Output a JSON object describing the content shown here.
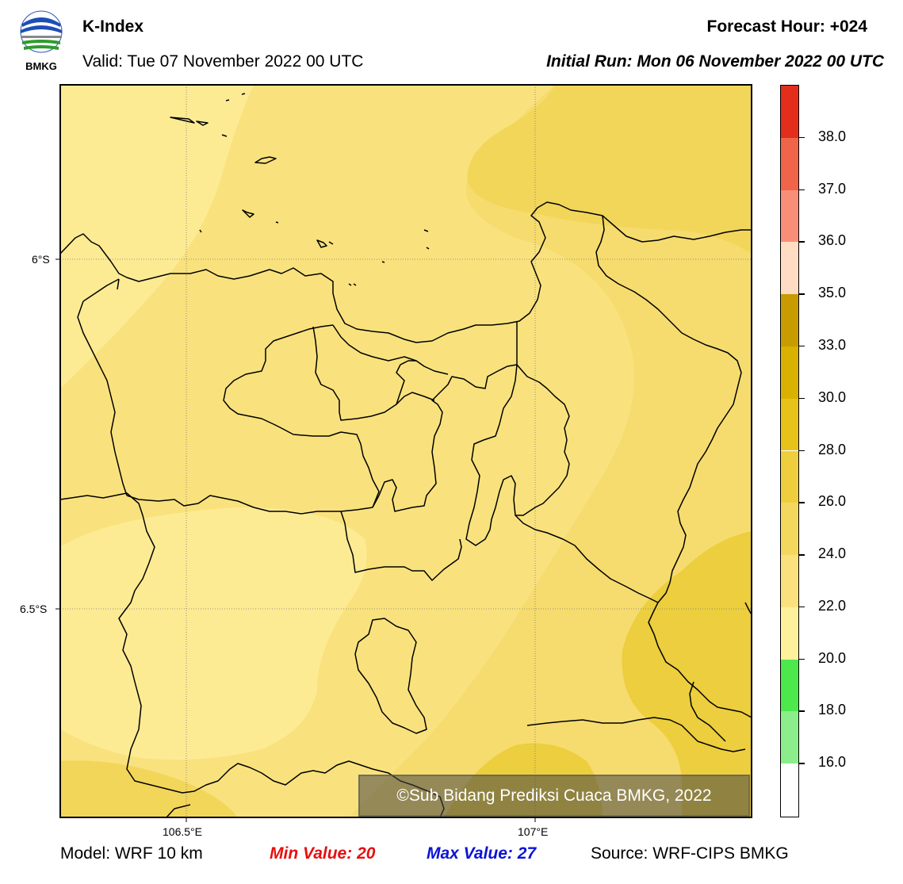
{
  "header": {
    "title": "K-Index",
    "valid": "Valid: Tue 07 November 2022 00 UTC",
    "forecast_hour": "Forecast Hour: +024",
    "initial_run": "Initial Run: Mon 06 November 2022 00 UTC"
  },
  "logo": {
    "text": "BMKG"
  },
  "map": {
    "lat_labels": [
      "6°S",
      "6.5°S"
    ],
    "lon_labels": [
      "106.5°E",
      "107°E"
    ],
    "credit": "©Sub Bidang Prediksi Cuaca BMKG, 2022",
    "fill_colors": {
      "light": "#fdeb94",
      "mid": "#f9e27d",
      "dark": "#f2d659",
      "darker": "#ecce3e"
    }
  },
  "colorbar": {
    "labels": [
      "16.0",
      "18.0",
      "20.0",
      "22.0",
      "24.0",
      "26.0",
      "28.0",
      "30.0",
      "33.0",
      "35.0",
      "36.0",
      "37.0",
      "38.0"
    ],
    "colors": [
      "#ffffff",
      "#8bee8b",
      "#4ce84c",
      "#fdf29b",
      "#f9e27d",
      "#f4d85e",
      "#eece3d",
      "#e7c219",
      "#d9b100",
      "#c89c00",
      "#ffdcc2",
      "#f98e78",
      "#f0644a",
      "#e32e1c"
    ]
  },
  "footer": {
    "model": "Model: WRF 10 km",
    "min": "Min Value: 20",
    "max": "Max Value: 27",
    "source": "Source: WRF-CIPS BMKG"
  }
}
